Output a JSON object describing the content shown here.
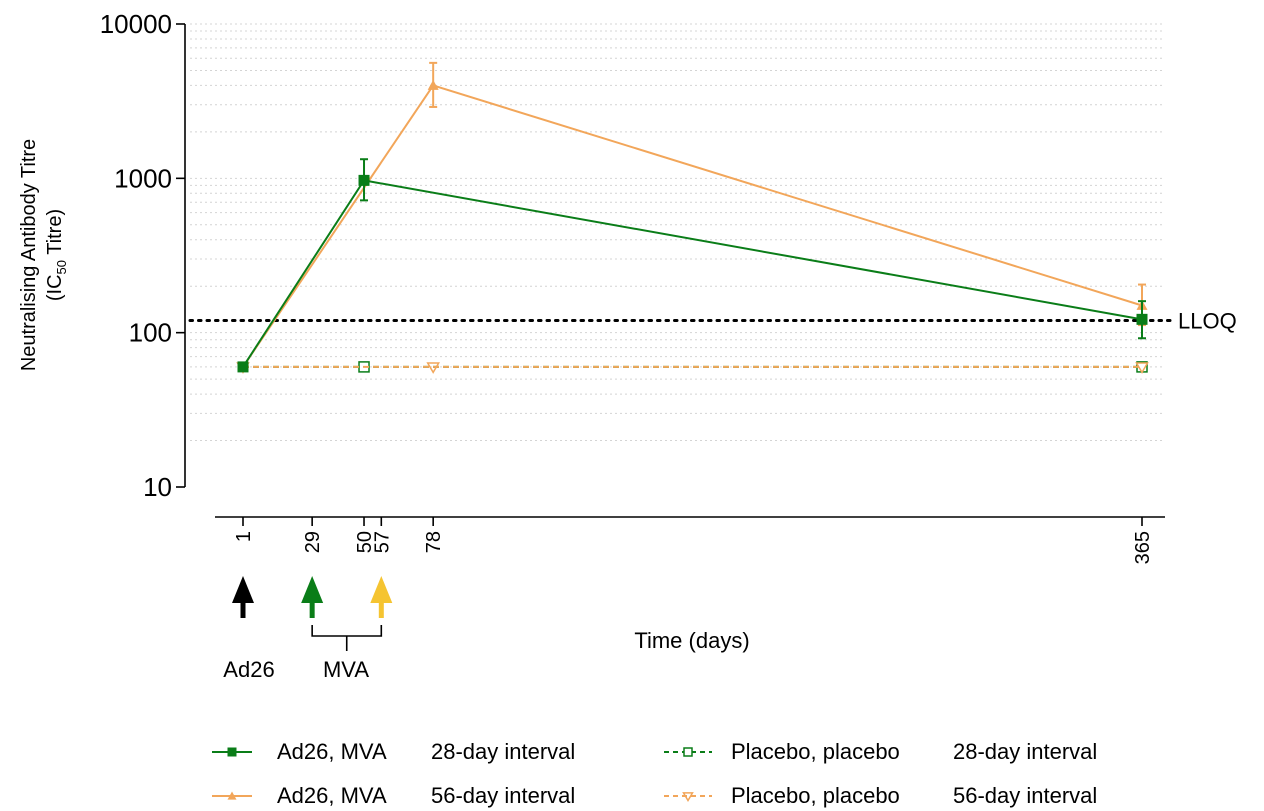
{
  "colors": {
    "green": "#0a7d18",
    "orange": "#f2a65a",
    "yellow": "#f5c431",
    "black": "#000000",
    "grid": "#d4d4d4"
  },
  "annotations": {
    "lloq_label": "LLOQ",
    "ad26_label": "Ad26",
    "mva_label": "MVA"
  },
  "legend": {
    "ad26_mva_28": {
      "name": "Ad26, MVA",
      "interval": "28-day interval"
    },
    "ad26_mva_56": {
      "name": "Ad26, MVA",
      "interval": "56-day interval"
    },
    "placebo_28": {
      "name": "Placebo, placebo",
      "interval": "28-day interval"
    },
    "placebo_56": {
      "name": "Placebo, placebo",
      "interval": "56-day interval"
    }
  },
  "chart_data": {
    "type": "line",
    "title": "",
    "xlabel": "Time (days)",
    "ylabel": "Neutralising Antibody Titre",
    "ylabel_line2": "(IC",
    "ylabel_sub": "50",
    "ylabel_line2_end": " Titre)",
    "yscale": "log",
    "ylim": [
      10,
      10000
    ],
    "y_ticks": [
      10,
      100,
      1000,
      10000
    ],
    "y_tick_labels": [
      "10",
      "100",
      "1000",
      "10000"
    ],
    "x_ticks": [
      1,
      29,
      50,
      57,
      78,
      365
    ],
    "x_tick_labels": [
      "1",
      "29",
      "50",
      "57",
      "78",
      "365"
    ],
    "grid": "horizontal minor dotted",
    "lloq": 120,
    "series": [
      {
        "name": "Ad26, MVA 28-day interval",
        "style": "solid",
        "marker": "square-filled",
        "color": "green",
        "x": [
          1,
          50,
          365
        ],
        "y": [
          60,
          970,
          122
        ],
        "err_low": [
          null,
          720,
          92
        ],
        "err_high": [
          null,
          1330,
          160
        ]
      },
      {
        "name": "Ad26, MVA 56-day interval",
        "style": "solid",
        "marker": "triangle-filled",
        "color": "orange",
        "x": [
          1,
          78,
          365
        ],
        "y": [
          60,
          4000,
          150
        ],
        "err_low": [
          null,
          2900,
          112
        ],
        "err_high": [
          null,
          5600,
          205
        ]
      },
      {
        "name": "Placebo, placebo 28-day interval",
        "style": "dashed",
        "marker": "square-open",
        "color": "green",
        "x": [
          1,
          50,
          365
        ],
        "y": [
          60,
          60,
          60
        ]
      },
      {
        "name": "Placebo, placebo 56-day interval",
        "style": "dashed",
        "marker": "triangle-down-open",
        "color": "orange",
        "x": [
          1,
          78,
          365
        ],
        "y": [
          60,
          60,
          60
        ]
      }
    ],
    "vaccination_arrows": [
      {
        "day": 1,
        "color": "black",
        "group": "Ad26"
      },
      {
        "day": 29,
        "color": "green",
        "group": "MVA"
      },
      {
        "day": 57,
        "color": "yellow",
        "group": "MVA"
      }
    ]
  }
}
